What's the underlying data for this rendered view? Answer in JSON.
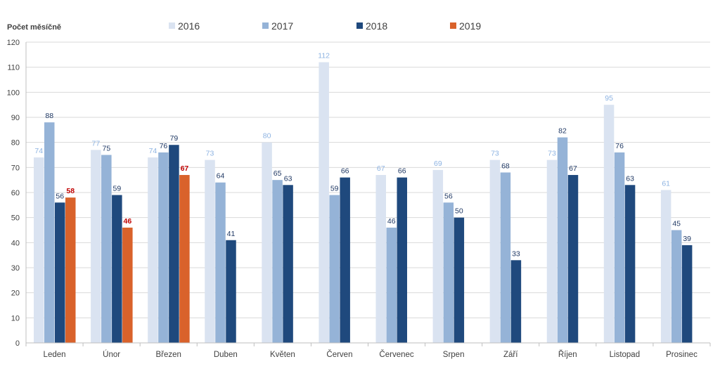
{
  "chart_data": {
    "type": "bar",
    "ylabel": "Počet měsíčně",
    "ylim": [
      0,
      120
    ],
    "ytick_step": 10,
    "grid": true,
    "legend_position": "top",
    "categories": [
      "Leden",
      "Únor",
      "Březen",
      "Duben",
      "Květen",
      "Červen",
      "Červenec",
      "Srpen",
      "Září",
      "Říjen",
      "Listopad",
      "Prosinec"
    ],
    "series": [
      {
        "name": "2016",
        "color": "#dae3f1",
        "label_color": "#8db3e2",
        "label_bold": false,
        "values": [
          74,
          77,
          74,
          73,
          80,
          112,
          67,
          69,
          73,
          73,
          95,
          61
        ]
      },
      {
        "name": "2017",
        "color": "#95b3d7",
        "label_color": "#1f3864",
        "label_bold": false,
        "values": [
          88,
          75,
          76,
          64,
          65,
          59,
          46,
          56,
          68,
          82,
          76,
          45
        ]
      },
      {
        "name": "2018",
        "color": "#1f497d",
        "label_color": "#1f3864",
        "label_bold": false,
        "values": [
          56,
          59,
          79,
          41,
          63,
          66,
          66,
          50,
          33,
          67,
          63,
          39
        ]
      },
      {
        "name": "2019",
        "color": "#d9622b",
        "label_color": "#c00000",
        "label_bold": true,
        "values": [
          58,
          46,
          67,
          null,
          null,
          null,
          null,
          null,
          null,
          null,
          null,
          null
        ]
      }
    ]
  }
}
